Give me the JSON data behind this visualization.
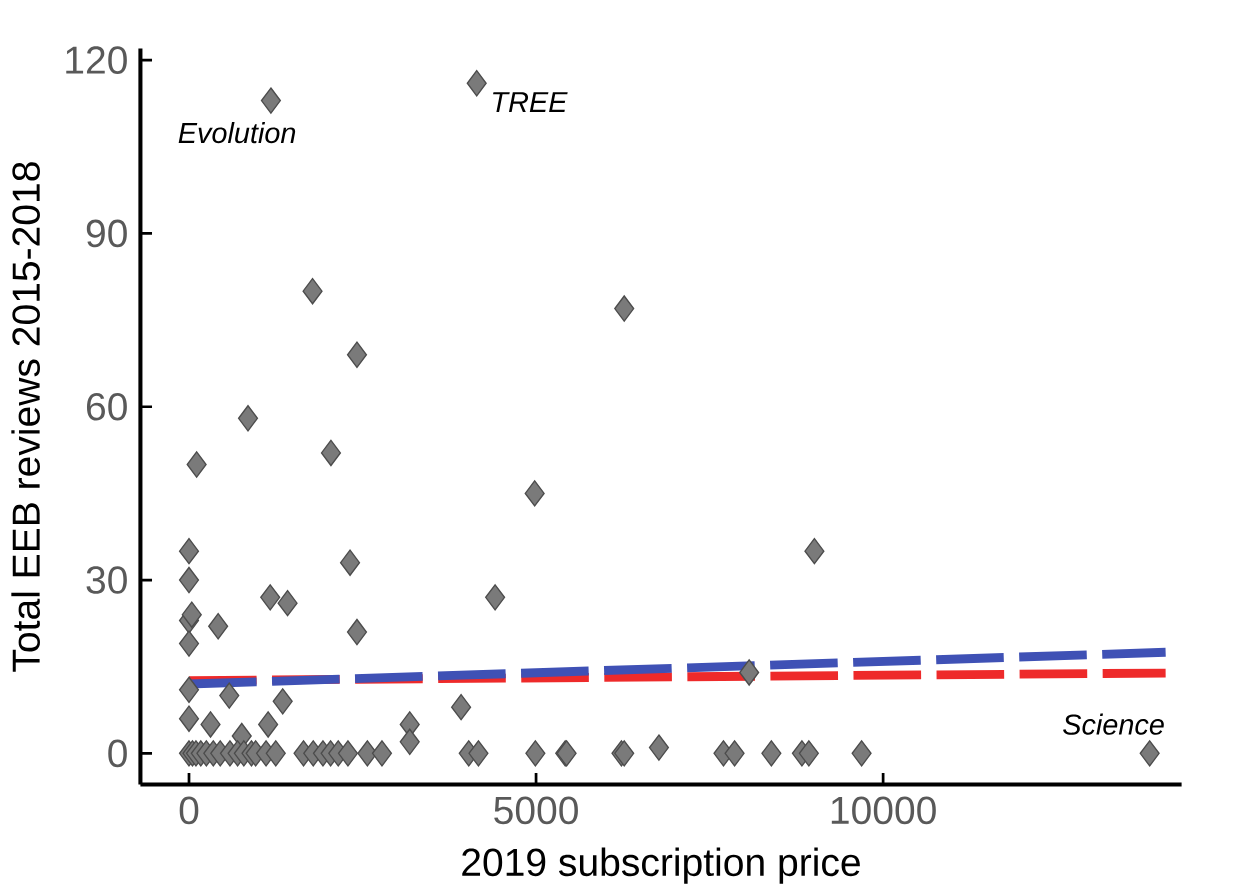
{
  "chart_data": {
    "type": "scatter",
    "xlabel": "2019 subscription price",
    "ylabel": "Total EEB reviews 2015-2018",
    "xlim": [
      -700,
      14300
    ],
    "ylim": [
      -5.4,
      122
    ],
    "xticks": [
      0,
      5000,
      10000
    ],
    "yticks": [
      0,
      30,
      60,
      90,
      120
    ],
    "grid": false,
    "series": [
      {
        "marker": "diamond",
        "color": "#7a7a7a",
        "x": [
          1180,
          4145,
          1780,
          6270,
          2420,
          850,
          2045,
          110,
          4980,
          9010,
          0,
          2320,
          0,
          4410,
          1170,
          1420,
          0,
          40,
          420,
          0,
          2420,
          0,
          580,
          1350,
          1140,
          0,
          310,
          3920,
          3180,
          3180,
          8070,
          6770,
          760,
          0,
          50,
          100,
          170,
          250,
          350,
          450,
          590,
          700,
          790,
          900,
          960,
          1110,
          1250,
          1650,
          1790,
          1930,
          2040,
          2150,
          2290,
          2570,
          2780,
          4030,
          4170,
          4990,
          5420,
          5440,
          6230,
          6270,
          7700,
          7860,
          8390,
          8830,
          8930,
          9690,
          13840
        ],
        "values": [
          113,
          116,
          80,
          77,
          69,
          58,
          52,
          50,
          45,
          35,
          35,
          33,
          30,
          27,
          27,
          26,
          23,
          24,
          22,
          19,
          21,
          11,
          10,
          9,
          5,
          6,
          5,
          8,
          5,
          2,
          14,
          1,
          3,
          0,
          0,
          0,
          0,
          0,
          0,
          0,
          0,
          0,
          0,
          0,
          0,
          0,
          0,
          0,
          0,
          0,
          0,
          0,
          0,
          0,
          0,
          0,
          0,
          0,
          0,
          0,
          0,
          0,
          0,
          0,
          0,
          0,
          0,
          0,
          0
        ]
      },
      {
        "type": "line",
        "color": "#ee2a2a",
        "line_style": "dashed",
        "x": [
          0,
          14070
        ],
        "values": [
          12.6,
          13.9
        ]
      },
      {
        "type": "line",
        "color": "#3f51b5",
        "line_style": "dashed",
        "x": [
          0,
          14070
        ],
        "values": [
          12,
          17.5
        ]
      }
    ],
    "annotations": [
      {
        "text": "Evolution",
        "x": 1180,
        "y": 113
      },
      {
        "text": "TREE",
        "x": 4145,
        "y": 116
      },
      {
        "text": "Science",
        "x": 13840,
        "y": 0
      }
    ]
  }
}
